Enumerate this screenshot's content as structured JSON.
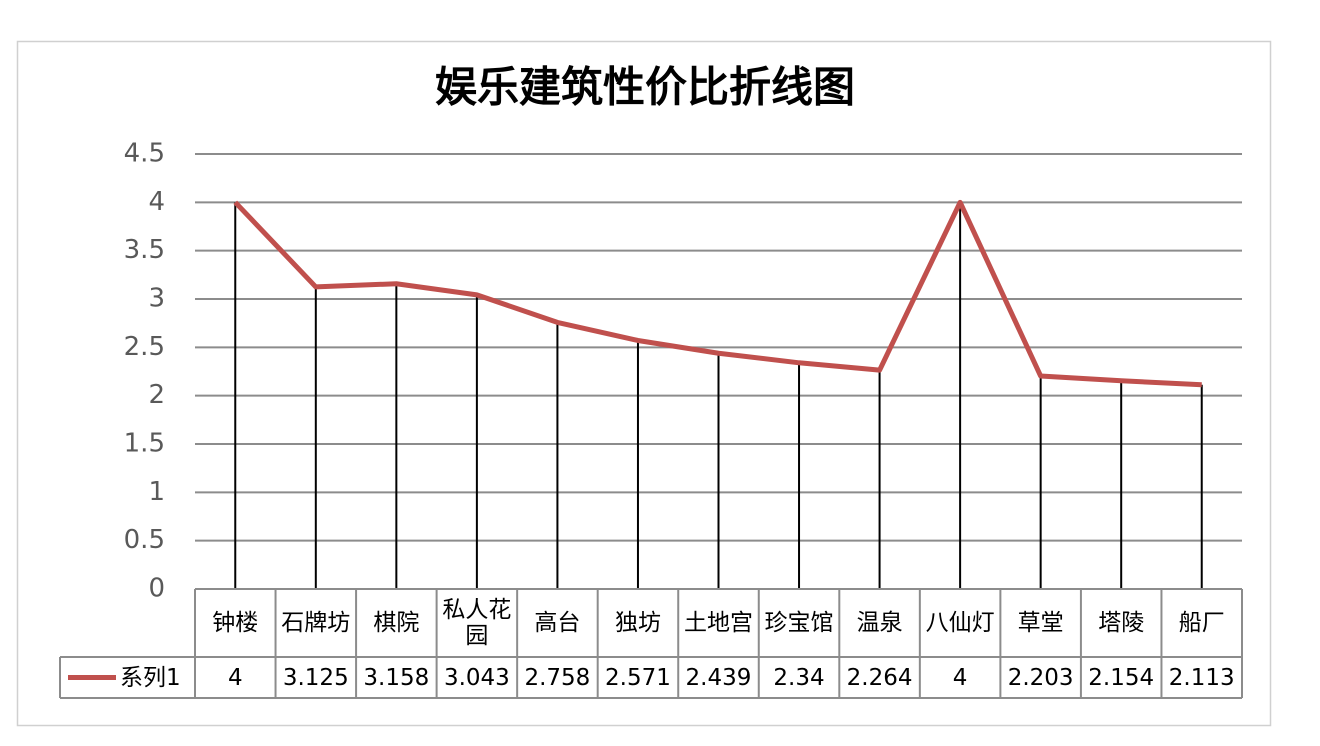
{
  "chart_data": {
    "type": "line",
    "title": "娱乐建筑性价比折线图",
    "categories": [
      "钟楼",
      "石牌坊",
      "棋院",
      "私人花园",
      "高台",
      "独坊",
      "土地宫",
      "珍宝馆",
      "温泉",
      "八仙灯",
      "草堂",
      "塔陵",
      "船厂"
    ],
    "series": [
      {
        "name": "系列1",
        "color": "#c0504d",
        "values": [
          4,
          3.125,
          3.158,
          3.043,
          2.758,
          2.571,
          2.439,
          2.34,
          2.264,
          4,
          2.203,
          2.154,
          2.113
        ]
      }
    ],
    "ylim": [
      0,
      4.5
    ],
    "yticks": [
      0,
      0.5,
      1,
      1.5,
      2,
      2.5,
      3,
      3.5,
      4,
      4.5
    ],
    "grid": true,
    "drop_lines": true,
    "data_table": true
  }
}
